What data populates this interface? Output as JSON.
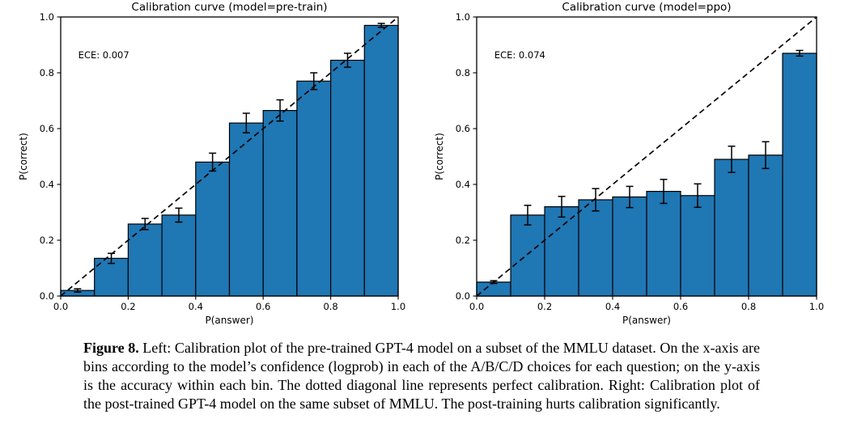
{
  "page": {
    "background_color": "#ffffff"
  },
  "figure_caption": {
    "label": "Figure 8.",
    "text": "Left: Calibration plot of the pre-trained GPT-4 model on a subset of the MMLU dataset. On the x-axis are bins according to the model’s confidence (logprob) in each of the A/B/C/D choices for each question; on the y-axis is the accuracy within each bin. The dotted diagonal line represents perfect calibration. Right: Calibration plot of the post-trained GPT-4 model on the same subset of MMLU. The post-training hurts calibration significantly."
  },
  "chart_data": [
    {
      "type": "bar",
      "title": "Calibration curve (model=pre-train)",
      "annotation": "ECE: 0.007",
      "xlabel": "P(answer)",
      "ylabel": "P(correct)",
      "xlim": [
        0.0,
        1.0
      ],
      "ylim": [
        0.0,
        1.0
      ],
      "xticks": [
        0.0,
        0.2,
        0.4,
        0.6,
        0.8,
        1.0
      ],
      "yticks": [
        0.0,
        0.2,
        0.4,
        0.6,
        0.8,
        1.0
      ],
      "grid": false,
      "legend": false,
      "diagonal_reference_line": "dashed y=x (perfect calibration)",
      "bin_edges": [
        0.0,
        0.1,
        0.2,
        0.3,
        0.4,
        0.5,
        0.6,
        0.7,
        0.8,
        0.9,
        1.0
      ],
      "values": [
        0.02,
        0.135,
        0.258,
        0.29,
        0.48,
        0.62,
        0.665,
        0.77,
        0.845,
        0.97
      ],
      "errors": [
        0.006,
        0.018,
        0.02,
        0.025,
        0.032,
        0.035,
        0.038,
        0.03,
        0.025,
        0.007
      ],
      "bar_color": "#1f77b4",
      "edge_color": "#000000",
      "line_color": "#000000"
    },
    {
      "type": "bar",
      "title": "Calibration curve (model=ppo)",
      "annotation": "ECE: 0.074",
      "xlabel": "P(answer)",
      "ylabel": "P(correct)",
      "xlim": [
        0.0,
        1.0
      ],
      "ylim": [
        0.0,
        1.0
      ],
      "xticks": [
        0.0,
        0.2,
        0.4,
        0.6,
        0.8,
        1.0
      ],
      "yticks": [
        0.0,
        0.2,
        0.4,
        0.6,
        0.8,
        1.0
      ],
      "grid": false,
      "legend": false,
      "diagonal_reference_line": "dashed y=x (perfect calibration)",
      "bin_edges": [
        0.0,
        0.1,
        0.2,
        0.3,
        0.4,
        0.5,
        0.6,
        0.7,
        0.8,
        0.9,
        1.0
      ],
      "values": [
        0.05,
        0.29,
        0.32,
        0.345,
        0.355,
        0.375,
        0.36,
        0.49,
        0.505,
        0.87
      ],
      "errors": [
        0.005,
        0.035,
        0.037,
        0.04,
        0.038,
        0.043,
        0.042,
        0.047,
        0.048,
        0.01
      ],
      "bar_color": "#1f77b4",
      "edge_color": "#000000",
      "line_color": "#000000"
    }
  ]
}
